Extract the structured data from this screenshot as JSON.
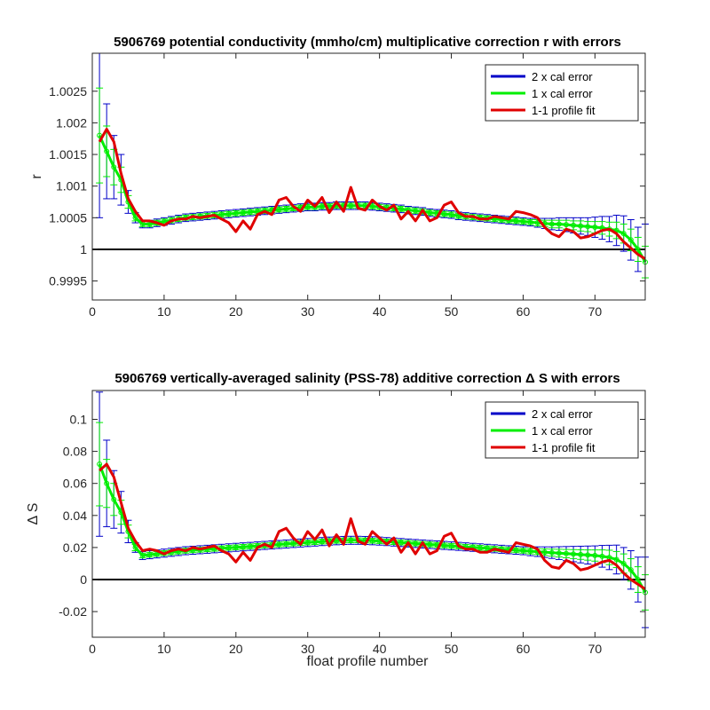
{
  "chart_data": [
    {
      "type": "line",
      "title": "5906769 potential conductivity (mmho/cm) multiplicative correction r with errors",
      "xlabel": "",
      "ylabel": "r",
      "xlim": [
        0,
        77
      ],
      "ylim": [
        0.9992,
        1.0031
      ],
      "xticks": [
        0,
        10,
        20,
        30,
        40,
        50,
        60,
        70
      ],
      "xticklabels": [
        "0",
        "10",
        "20",
        "30",
        "40",
        "50",
        "60",
        "70"
      ],
      "yticks": [
        0.9995,
        1.0,
        1.0005,
        1.001,
        1.0015,
        1.002,
        1.0025
      ],
      "yticklabels": [
        "0.9995",
        "1",
        "1.0005",
        "1.001",
        "1.0015",
        "1.002",
        "1.0025"
      ],
      "reference_line": 1.0,
      "legend_position": "top-right",
      "legend": [
        "2 x cal error",
        "1 x cal error",
        "1-1 profile fit"
      ],
      "colors": {
        "blue": "#0000c8",
        "green": "#00ee00",
        "red": "#e00000",
        "ref": "#000000"
      },
      "x": [
        1,
        2,
        3,
        4,
        5,
        6,
        7,
        8,
        9,
        10,
        11,
        12,
        13,
        14,
        15,
        16,
        17,
        18,
        19,
        20,
        21,
        22,
        23,
        24,
        25,
        26,
        27,
        28,
        29,
        30,
        31,
        32,
        33,
        34,
        35,
        36,
        37,
        38,
        39,
        40,
        41,
        42,
        43,
        44,
        45,
        46,
        47,
        48,
        49,
        50,
        51,
        52,
        53,
        54,
        55,
        56,
        57,
        58,
        59,
        60,
        61,
        62,
        63,
        64,
        65,
        66,
        67,
        68,
        69,
        70,
        71,
        72,
        73,
        74,
        75,
        76,
        77
      ],
      "series": [
        {
          "name": "1 x cal error",
          "role": "fit",
          "values": [
            1.0018,
            1.00155,
            1.0013,
            1.0011,
            1.00075,
            1.0005,
            1.0004,
            1.0004,
            1.00042,
            1.00044,
            1.00046,
            1.00048,
            1.0005,
            1.00051,
            1.00052,
            1.00053,
            1.00054,
            1.00055,
            1.00056,
            1.00057,
            1.00058,
            1.00059,
            1.0006,
            1.00061,
            1.00062,
            1.00063,
            1.00064,
            1.00065,
            1.00066,
            1.00067,
            1.00067,
            1.00068,
            1.00068,
            1.00069,
            1.00069,
            1.00069,
            1.00069,
            1.00069,
            1.00068,
            1.00067,
            1.00066,
            1.00065,
            1.00064,
            1.00062,
            1.00061,
            1.0006,
            1.00058,
            1.00057,
            1.00056,
            1.00055,
            1.00053,
            1.00052,
            1.00051,
            1.0005,
            1.00049,
            1.00048,
            1.00047,
            1.00046,
            1.00045,
            1.00044,
            1.00043,
            1.00042,
            1.00041,
            1.0004,
            1.0004,
            1.00039,
            1.00038,
            1.00037,
            1.00036,
            1.00035,
            1.00034,
            1.00032,
            1.0003,
            1.00025,
            1.00015,
            1.0,
            0.9998
          ]
        },
        {
          "name": "2 x cal error",
          "role": "err2",
          "values": [
            0.0013,
            0.00075,
            0.0005,
            0.0004,
            0.00018,
            8e-05,
            6e-05,
            6e-05,
            6e-05,
            6e-05,
            6e-05,
            6e-05,
            6e-05,
            6e-05,
            6e-05,
            6e-05,
            6e-05,
            6e-05,
            6e-05,
            6e-05,
            6e-05,
            6e-05,
            6e-05,
            6e-05,
            6e-05,
            6e-05,
            6e-05,
            6e-05,
            6e-05,
            6e-05,
            6e-05,
            6e-05,
            6e-05,
            6e-05,
            6e-05,
            6e-05,
            6e-05,
            6e-05,
            6e-05,
            6e-05,
            6e-05,
            6e-05,
            6e-05,
            6e-05,
            6e-05,
            6e-05,
            6e-05,
            6e-05,
            6e-05,
            6e-05,
            6e-05,
            6e-05,
            6e-05,
            6e-05,
            6e-05,
            6e-05,
            6e-05,
            6e-05,
            6e-05,
            6e-05,
            6e-05,
            7e-05,
            8e-05,
            9e-05,
            0.0001,
            0.00011,
            0.00012,
            0.00013,
            0.00014,
            0.00016,
            0.00018,
            0.0002,
            0.00024,
            0.00028,
            0.00032,
            0.00035,
            0.0006
          ]
        },
        {
          "name": "1 x cal error",
          "role": "err1",
          "values": [
            0.00075,
            0.0004,
            0.00028,
            0.0002,
            0.0001,
            5e-05,
            4e-05,
            4e-05,
            4e-05,
            4e-05,
            4e-05,
            4e-05,
            4e-05,
            4e-05,
            4e-05,
            4e-05,
            4e-05,
            4e-05,
            4e-05,
            4e-05,
            4e-05,
            4e-05,
            4e-05,
            4e-05,
            4e-05,
            4e-05,
            4e-05,
            4e-05,
            4e-05,
            4e-05,
            4e-05,
            4e-05,
            4e-05,
            4e-05,
            4e-05,
            4e-05,
            4e-05,
            4e-05,
            4e-05,
            4e-05,
            4e-05,
            4e-05,
            4e-05,
            4e-05,
            4e-05,
            4e-05,
            4e-05,
            4e-05,
            4e-05,
            4e-05,
            4e-05,
            4e-05,
            4e-05,
            4e-05,
            4e-05,
            4e-05,
            4e-05,
            4e-05,
            4e-05,
            4e-05,
            4e-05,
            5e-05,
            5e-05,
            6e-05,
            6e-05,
            7e-05,
            7e-05,
            8e-05,
            8e-05,
            9e-05,
            0.0001,
            0.00011,
            0.00013,
            0.00015,
            0.00017,
            0.00019,
            0.00025
          ]
        },
        {
          "name": "1-1 profile fit",
          "role": "profile",
          "values": [
            1.0017,
            1.0019,
            1.0017,
            1.0012,
            1.0008,
            1.0006,
            1.00045,
            1.00045,
            1.00042,
            1.00038,
            1.00045,
            1.00048,
            1.00048,
            1.00052,
            1.0005,
            1.00052,
            1.00054,
            1.00048,
            1.00042,
            1.00028,
            1.00045,
            1.00032,
            1.00055,
            1.0006,
            1.00055,
            1.00078,
            1.00082,
            1.00068,
            1.0006,
            1.00078,
            1.00068,
            1.00082,
            1.00058,
            1.00075,
            1.0006,
            1.00098,
            1.00065,
            1.00062,
            1.00078,
            1.00068,
            1.00062,
            1.0007,
            1.00048,
            1.0006,
            1.00045,
            1.00062,
            1.00045,
            1.0005,
            1.0007,
            1.00075,
            1.00058,
            1.00052,
            1.00052,
            1.00048,
            1.00048,
            1.00052,
            1.0005,
            1.00048,
            1.0006,
            1.00058,
            1.00055,
            1.0005,
            1.00035,
            1.00025,
            1.0002,
            1.00032,
            1.00028,
            1.00018,
            1.0002,
            1.00025,
            1.0003,
            1.00032,
            1.00025,
            1.00012,
            1.00002,
            0.99992,
            0.99985
          ]
        }
      ]
    },
    {
      "type": "line",
      "title": "5906769 vertically-averaged salinity (PSS-78) additive correction Δ S with errors",
      "xlabel": "float profile number",
      "ylabel": "Δ S",
      "xlim": [
        0,
        77
      ],
      "ylim": [
        -0.036,
        0.118
      ],
      "xticks": [
        0,
        10,
        20,
        30,
        40,
        50,
        60,
        70
      ],
      "xticklabels": [
        "0",
        "10",
        "20",
        "30",
        "40",
        "50",
        "60",
        "70"
      ],
      "yticks": [
        -0.02,
        0,
        0.02,
        0.04,
        0.06,
        0.08,
        0.1
      ],
      "yticklabels": [
        "-0.02",
        "0",
        "0.02",
        "0.04",
        "0.06",
        "0.08",
        "0.1"
      ],
      "reference_line": 0,
      "legend_position": "top-right",
      "legend": [
        "2 x cal error",
        "1 x cal error",
        "1-1 profile fit"
      ],
      "colors": {
        "blue": "#0000c8",
        "green": "#00ee00",
        "red": "#e00000",
        "ref": "#000000"
      },
      "x": [
        1,
        2,
        3,
        4,
        5,
        6,
        7,
        8,
        9,
        10,
        11,
        12,
        13,
        14,
        15,
        16,
        17,
        18,
        19,
        20,
        21,
        22,
        23,
        24,
        25,
        26,
        27,
        28,
        29,
        30,
        31,
        32,
        33,
        34,
        35,
        36,
        37,
        38,
        39,
        40,
        41,
        42,
        43,
        44,
        45,
        46,
        47,
        48,
        49,
        50,
        51,
        52,
        53,
        54,
        55,
        56,
        57,
        58,
        59,
        60,
        61,
        62,
        63,
        64,
        65,
        66,
        67,
        68,
        69,
        70,
        71,
        72,
        73,
        74,
        75,
        76,
        77
      ],
      "series": [
        {
          "name": "1 x cal error",
          "role": "fit",
          "values": [
            0.072,
            0.06,
            0.05,
            0.042,
            0.03,
            0.02,
            0.015,
            0.0155,
            0.016,
            0.0165,
            0.017,
            0.0175,
            0.018,
            0.0183,
            0.0186,
            0.0189,
            0.0192,
            0.0195,
            0.0198,
            0.0201,
            0.0204,
            0.0207,
            0.021,
            0.0213,
            0.0216,
            0.0219,
            0.0222,
            0.0225,
            0.0228,
            0.0231,
            0.0234,
            0.0237,
            0.024,
            0.0242,
            0.0244,
            0.0245,
            0.0245,
            0.0244,
            0.0242,
            0.024,
            0.0237,
            0.0234,
            0.0231,
            0.0228,
            0.0225,
            0.0222,
            0.0219,
            0.0216,
            0.0213,
            0.021,
            0.0207,
            0.0204,
            0.0201,
            0.0198,
            0.0195,
            0.0192,
            0.0189,
            0.0186,
            0.0183,
            0.018,
            0.0177,
            0.0174,
            0.0171,
            0.0168,
            0.0165,
            0.0162,
            0.0159,
            0.0156,
            0.0153,
            0.015,
            0.0145,
            0.0138,
            0.0125,
            0.01,
            0.006,
            0.0,
            -0.008
          ]
        },
        {
          "name": "2 x cal error",
          "role": "err2",
          "values": [
            0.045,
            0.027,
            0.018,
            0.013,
            0.007,
            0.003,
            0.0025,
            0.0025,
            0.0025,
            0.0025,
            0.0025,
            0.0025,
            0.0025,
            0.0025,
            0.0025,
            0.0025,
            0.0025,
            0.0025,
            0.0025,
            0.0025,
            0.0025,
            0.0025,
            0.0025,
            0.0025,
            0.0025,
            0.0025,
            0.0025,
            0.0025,
            0.0025,
            0.0025,
            0.0025,
            0.0025,
            0.0025,
            0.0025,
            0.0025,
            0.0025,
            0.0025,
            0.0025,
            0.0025,
            0.0025,
            0.0025,
            0.0025,
            0.0025,
            0.0025,
            0.0025,
            0.0025,
            0.0025,
            0.0025,
            0.0025,
            0.0025,
            0.0025,
            0.0025,
            0.0025,
            0.0025,
            0.0025,
            0.0025,
            0.0025,
            0.0025,
            0.0025,
            0.0025,
            0.0028,
            0.003,
            0.0033,
            0.0036,
            0.004,
            0.0044,
            0.0048,
            0.0052,
            0.0056,
            0.006,
            0.0068,
            0.0076,
            0.009,
            0.01,
            0.012,
            0.014,
            0.022
          ]
        },
        {
          "name": "1 x cal error",
          "role": "err1",
          "values": [
            0.026,
            0.015,
            0.01,
            0.0075,
            0.004,
            0.002,
            0.0015,
            0.0015,
            0.0015,
            0.0015,
            0.0015,
            0.0015,
            0.0015,
            0.0015,
            0.0015,
            0.0015,
            0.0015,
            0.0015,
            0.0015,
            0.0015,
            0.0015,
            0.0015,
            0.0015,
            0.0015,
            0.0015,
            0.0015,
            0.0015,
            0.0015,
            0.0015,
            0.0015,
            0.0015,
            0.0015,
            0.0015,
            0.0015,
            0.0015,
            0.0015,
            0.0015,
            0.0015,
            0.0015,
            0.0015,
            0.0015,
            0.0015,
            0.0015,
            0.0015,
            0.0015,
            0.0015,
            0.0015,
            0.0015,
            0.0015,
            0.0015,
            0.0015,
            0.0015,
            0.0015,
            0.0015,
            0.0015,
            0.0015,
            0.0015,
            0.0015,
            0.0015,
            0.0015,
            0.0017,
            0.0018,
            0.002,
            0.0022,
            0.0024,
            0.0026,
            0.0028,
            0.003,
            0.0032,
            0.0035,
            0.004,
            0.0045,
            0.005,
            0.006,
            0.007,
            0.008,
            0.011
          ]
        },
        {
          "name": "1-1 profile fit",
          "role": "profile",
          "values": [
            0.068,
            0.072,
            0.064,
            0.048,
            0.032,
            0.024,
            0.018,
            0.019,
            0.018,
            0.016,
            0.018,
            0.019,
            0.018,
            0.02,
            0.019,
            0.02,
            0.021,
            0.018,
            0.016,
            0.011,
            0.017,
            0.012,
            0.02,
            0.022,
            0.02,
            0.03,
            0.032,
            0.026,
            0.022,
            0.03,
            0.025,
            0.031,
            0.021,
            0.028,
            0.022,
            0.038,
            0.024,
            0.022,
            0.03,
            0.026,
            0.022,
            0.026,
            0.017,
            0.023,
            0.016,
            0.023,
            0.016,
            0.018,
            0.027,
            0.029,
            0.021,
            0.019,
            0.019,
            0.017,
            0.017,
            0.019,
            0.018,
            0.017,
            0.023,
            0.022,
            0.021,
            0.019,
            0.012,
            0.008,
            0.007,
            0.012,
            0.01,
            0.006,
            0.007,
            0.009,
            0.011,
            0.012,
            0.009,
            0.004,
            0.0,
            -0.003,
            -0.006
          ]
        }
      ]
    }
  ]
}
